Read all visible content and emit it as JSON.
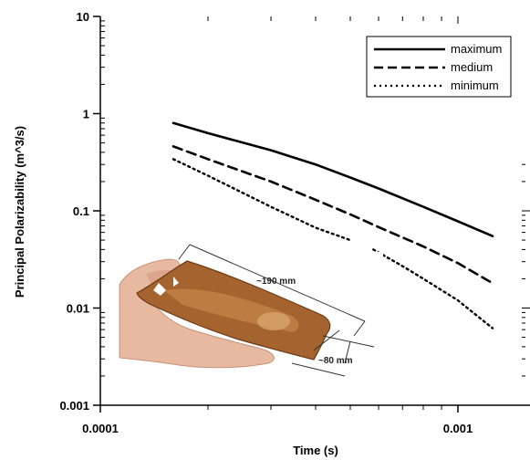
{
  "chart_data": {
    "type": "line",
    "xscale": "log",
    "yscale": "log",
    "xlabel": "Time (s)",
    "ylabel": "Principal Polarizability (m^3/s)",
    "xlim": [
      0.0001,
      0.0015
    ],
    "ylim": [
      0.001,
      10
    ],
    "x_ticks": [
      "0.0001",
      "0.001"
    ],
    "y_ticks": [
      "10",
      "1",
      "0.1",
      "0.01",
      "0.001"
    ],
    "grid": false,
    "legend_position": "top-right",
    "series": [
      {
        "name": "maximum",
        "style": "solid",
        "points": [
          [
            0.00016,
            0.8
          ],
          [
            0.0002,
            0.63
          ],
          [
            0.0003,
            0.42
          ],
          [
            0.0004,
            0.3
          ],
          [
            0.0005,
            0.22
          ],
          [
            0.0006,
            0.17
          ],
          [
            0.0008,
            0.11
          ],
          [
            0.001,
            0.078
          ],
          [
            0.00125,
            0.055
          ]
        ]
      },
      {
        "name": "medium",
        "style": "dashed",
        "points": [
          [
            0.00016,
            0.46
          ],
          [
            0.0002,
            0.34
          ],
          [
            0.0003,
            0.2
          ],
          [
            0.0004,
            0.13
          ],
          [
            0.0005,
            0.092
          ],
          [
            0.0006,
            0.068
          ],
          [
            0.0008,
            0.043
          ],
          [
            0.001,
            0.029
          ],
          [
            0.00125,
            0.018
          ]
        ]
      },
      {
        "name": "minimum",
        "style": "dotted",
        "points": [
          [
            0.00016,
            0.34
          ],
          [
            0.0002,
            0.23
          ],
          [
            0.0003,
            0.11
          ],
          [
            0.0004,
            0.067
          ],
          [
            0.0005,
            0.05
          ],
          null,
          [
            0.00058,
            0.04
          ],
          [
            0.0007,
            0.027
          ],
          [
            0.0008,
            0.02
          ],
          [
            0.001,
            0.012
          ],
          [
            0.00125,
            0.0062
          ]
        ]
      }
    ]
  },
  "photo": {
    "description_hidden": true,
    "length_label": "~190 mm",
    "width_label": "~80 mm"
  }
}
